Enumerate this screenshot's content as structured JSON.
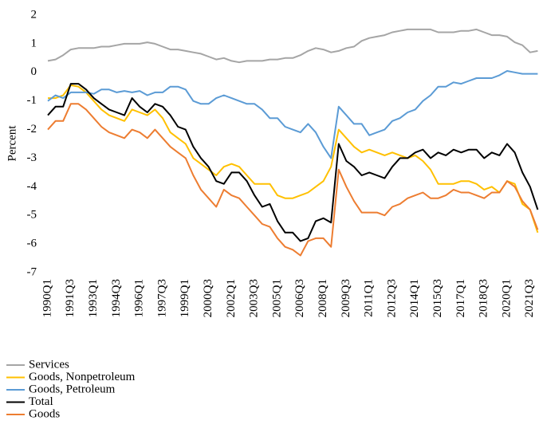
{
  "chart_data": {
    "type": "line",
    "y_label": "Percent",
    "categories": [
      "1990Q1",
      null,
      null,
      "1991Q3",
      null,
      null,
      "1993Q1",
      null,
      null,
      "1994Q3",
      null,
      null,
      "1996Q1",
      null,
      null,
      "1997Q3",
      null,
      null,
      "1999Q1",
      null,
      null,
      "2000Q3",
      null,
      null,
      "2002Q1",
      null,
      null,
      "2003Q3",
      null,
      null,
      "2005Q1",
      null,
      null,
      "2006Q3",
      null,
      null,
      "2008Q1",
      null,
      null,
      "2009Q3",
      null,
      null,
      "2011Q1",
      null,
      null,
      "2012Q3",
      null,
      null,
      "2014Q1",
      null,
      null,
      "2015Q3",
      null,
      null,
      "2017Q1",
      null,
      null,
      "2018Q3",
      null,
      null,
      "2020Q1",
      null,
      null,
      "2021Q3",
      null
    ],
    "ylim": [
      -7,
      2
    ],
    "yticks": [
      -7,
      -6,
      -5,
      -4,
      -3,
      -2,
      -1,
      0,
      1,
      2
    ],
    "series": [
      {
        "name": "Services",
        "color": "#a5a5a5",
        "values": [
          0.4,
          0.45,
          0.6,
          0.8,
          0.85,
          0.85,
          0.85,
          0.9,
          0.9,
          0.95,
          1.0,
          1.0,
          1.0,
          1.05,
          1.0,
          0.9,
          0.8,
          0.8,
          0.75,
          0.7,
          0.65,
          0.55,
          0.45,
          0.5,
          0.4,
          0.35,
          0.4,
          0.4,
          0.4,
          0.45,
          0.45,
          0.5,
          0.5,
          0.6,
          0.75,
          0.85,
          0.8,
          0.7,
          0.75,
          0.85,
          0.9,
          1.1,
          1.2,
          1.25,
          1.3,
          1.4,
          1.45,
          1.5,
          1.5,
          1.5,
          1.5,
          1.4,
          1.4,
          1.4,
          1.45,
          1.45,
          1.5,
          1.4,
          1.3,
          1.3,
          1.25,
          1.05,
          0.95,
          0.7,
          0.75
        ]
      },
      {
        "name": "Goods, Nonpetroleum",
        "color": "#ffc000",
        "values": [
          -0.9,
          -0.9,
          -0.8,
          -0.45,
          -0.5,
          -0.7,
          -1.0,
          -1.3,
          -1.5,
          -1.6,
          -1.7,
          -1.3,
          -1.4,
          -1.5,
          -1.3,
          -1.6,
          -2.1,
          -2.3,
          -2.5,
          -3.0,
          -3.2,
          -3.4,
          -3.6,
          -3.3,
          -3.2,
          -3.3,
          -3.6,
          -3.9,
          -3.9,
          -3.9,
          -4.3,
          -4.4,
          -4.4,
          -4.3,
          -4.2,
          -4.0,
          -3.8,
          -3.3,
          -2.0,
          -2.3,
          -2.6,
          -2.8,
          -2.7,
          -2.8,
          -2.9,
          -2.8,
          -2.9,
          -3.0,
          -2.9,
          -3.1,
          -3.4,
          -3.9,
          -3.9,
          -3.9,
          -3.8,
          -3.8,
          -3.9,
          -4.1,
          -4.0,
          -4.2,
          -3.8,
          -3.9,
          -4.6,
          -4.8,
          -5.6
        ]
      },
      {
        "name": "Goods, Petroleum",
        "color": "#5b9bd5",
        "values": [
          -1.0,
          -0.8,
          -0.9,
          -0.7,
          -0.7,
          -0.7,
          -0.75,
          -0.6,
          -0.6,
          -0.7,
          -0.65,
          -0.7,
          -0.65,
          -0.8,
          -0.7,
          -0.7,
          -0.5,
          -0.5,
          -0.6,
          -1.0,
          -1.1,
          -1.1,
          -0.9,
          -0.8,
          -0.9,
          -1.0,
          -1.1,
          -1.1,
          -1.3,
          -1.6,
          -1.6,
          -1.9,
          -2.0,
          -2.1,
          -1.8,
          -2.1,
          -2.6,
          -3.0,
          -1.2,
          -1.5,
          -1.8,
          -1.8,
          -2.2,
          -2.1,
          -2.0,
          -1.7,
          -1.6,
          -1.4,
          -1.3,
          -1.0,
          -0.8,
          -0.5,
          -0.5,
          -0.35,
          -0.4,
          -0.3,
          -0.2,
          -0.2,
          -0.2,
          -0.1,
          0.05,
          0.0,
          -0.05,
          -0.05,
          -0.05
        ]
      },
      {
        "name": "Total",
        "color": "#000000",
        "values": [
          -1.5,
          -1.2,
          -1.2,
          -0.4,
          -0.4,
          -0.6,
          -0.9,
          -1.1,
          -1.3,
          -1.4,
          -1.5,
          -0.9,
          -1.2,
          -1.4,
          -1.1,
          -1.2,
          -1.5,
          -1.9,
          -2.0,
          -2.6,
          -3.0,
          -3.3,
          -3.8,
          -3.9,
          -3.5,
          -3.5,
          -3.8,
          -4.3,
          -4.7,
          -4.6,
          -5.2,
          -5.6,
          -5.6,
          -5.9,
          -5.8,
          -5.2,
          -5.1,
          -5.25,
          -2.5,
          -3.1,
          -3.3,
          -3.6,
          -3.5,
          -3.6,
          -3.7,
          -3.3,
          -3.0,
          -3.0,
          -2.8,
          -2.7,
          -3.0,
          -2.8,
          -2.9,
          -2.7,
          -2.8,
          -2.7,
          -2.7,
          -3.0,
          -2.8,
          -2.9,
          -2.5,
          -2.8,
          -3.5,
          -4.0,
          -4.8
        ]
      },
      {
        "name": "Goods",
        "color": "#ed7d31",
        "values": [
          -2.0,
          -1.7,
          -1.7,
          -1.1,
          -1.1,
          -1.3,
          -1.6,
          -1.9,
          -2.1,
          -2.2,
          -2.3,
          -2.0,
          -2.1,
          -2.3,
          -2.0,
          -2.3,
          -2.6,
          -2.8,
          -3.0,
          -3.6,
          -4.1,
          -4.4,
          -4.7,
          -4.1,
          -4.3,
          -4.4,
          -4.7,
          -5.0,
          -5.3,
          -5.4,
          -5.8,
          -6.1,
          -6.2,
          -6.4,
          -5.9,
          -5.8,
          -5.8,
          -6.1,
          -3.4,
          -4.0,
          -4.5,
          -4.9,
          -4.9,
          -4.9,
          -5.0,
          -4.7,
          -4.6,
          -4.4,
          -4.3,
          -4.2,
          -4.4,
          -4.4,
          -4.3,
          -4.1,
          -4.2,
          -4.2,
          -4.3,
          -4.4,
          -4.2,
          -4.2,
          -3.8,
          -4.0,
          -4.5,
          -4.8,
          -5.5
        ]
      }
    ]
  }
}
